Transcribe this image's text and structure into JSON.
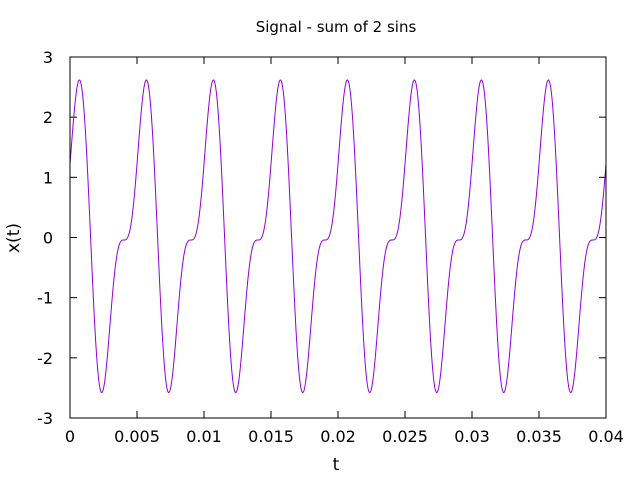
{
  "chart_data": {
    "type": "line",
    "title": "Signal - sum of 2 sins",
    "xlabel": "t",
    "ylabel": "x(t)",
    "xlim": [
      0,
      0.04
    ],
    "ylim": [
      -3,
      3
    ],
    "xticks": [
      "0",
      "0.005",
      "0.01",
      "0.015",
      "0.02",
      "0.025",
      "0.03",
      "0.035",
      "0.04"
    ],
    "yticks": [
      "3",
      "2",
      "1",
      "0",
      "-1",
      "-2",
      "-3"
    ],
    "grid": false,
    "series": [
      {
        "color": "#9400d3",
        "function": "x(t) = 2*sin(2*pi*200*t + 1.2) + sin(2*pi*400*t - 0.7)",
        "components": [
          {
            "amplitude": 2,
            "frequency_hz": 200,
            "phase_rad": 1.2
          },
          {
            "amplitude": 1,
            "frequency_hz": 400,
            "phase_rad": -0.7
          }
        ],
        "t_start": 0,
        "t_end": 0.04
      }
    ]
  }
}
